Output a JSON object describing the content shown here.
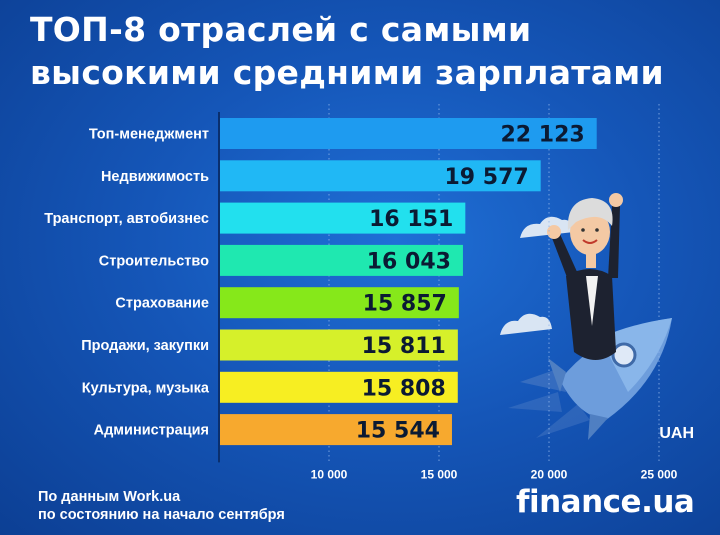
{
  "title_line1": "ТОП-8 отраслей с самыми",
  "title_line2": "высокими средними зарплатами",
  "source_line1": "По данным Work.ua",
  "source_line2": "по состоянию на начало сентября",
  "logo_main": "finance",
  "logo_suffix": ".ua",
  "chart_data": {
    "type": "bar",
    "orientation": "horizontal",
    "categories": [
      "Топ-менеджмент",
      "Недвижимость",
      "Транспорт, автобизнес",
      "Строительство",
      "Страхование",
      "Продажи, закупки",
      "Культура, музыка",
      "Администрация"
    ],
    "values": [
      22123,
      19577,
      16151,
      16043,
      15857,
      15811,
      15808,
      15544
    ],
    "value_labels": [
      "22 123",
      "19 577",
      "16 151",
      "16 043",
      "15 857",
      "15 811",
      "15 808",
      "15 544"
    ],
    "bar_colors": [
      "#1e9bf0",
      "#20b8f5",
      "#22e0ee",
      "#1fe8b0",
      "#86e81a",
      "#d6f02a",
      "#f7ee22",
      "#f7a92e"
    ],
    "xlabel": "UAH",
    "xticks": [
      10000,
      15000,
      20000,
      25000
    ],
    "xtick_labels": [
      "10 000",
      "15 000",
      "20 000",
      "25 000"
    ],
    "xlim": [
      5000,
      27500
    ],
    "grid": "vertical dotted"
  }
}
